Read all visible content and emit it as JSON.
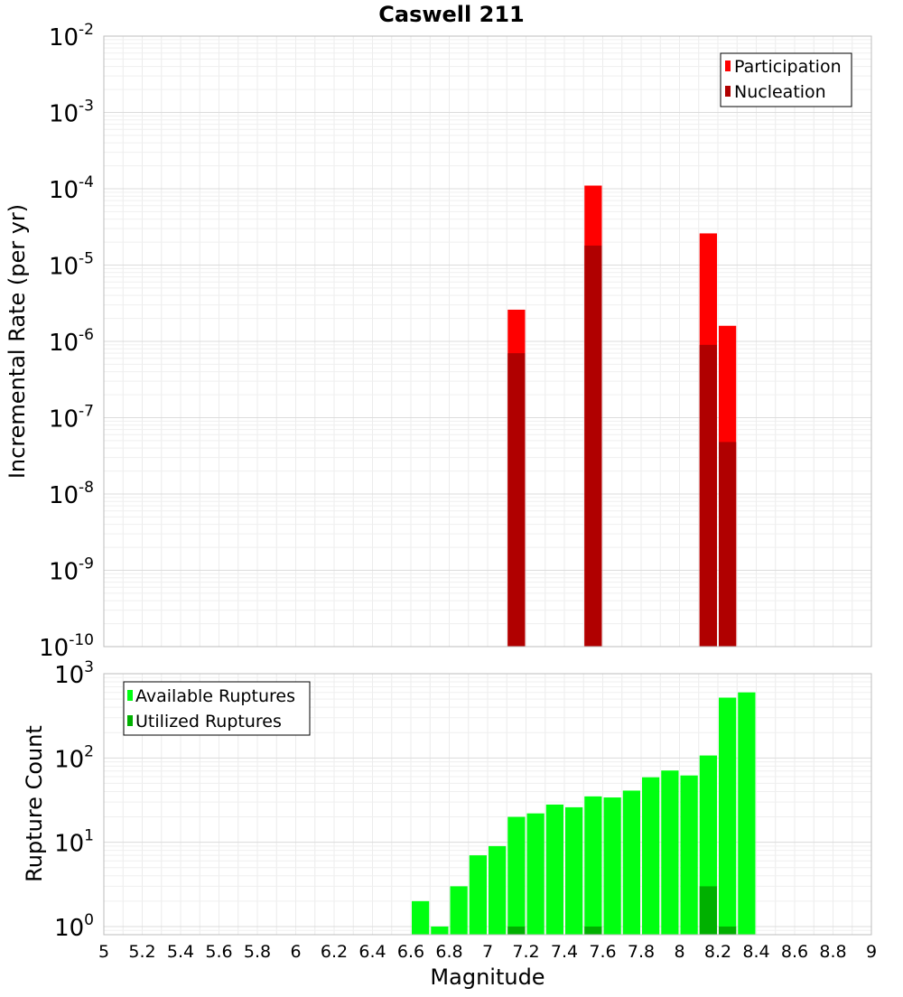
{
  "chart_data": [
    {
      "type": "bar",
      "title": "Caswell 211",
      "ylabel": "Incremental Rate (per yr)",
      "xlabel": "",
      "y_scale": "log",
      "ylim": [
        1e-10,
        0.01
      ],
      "xlim": [
        5,
        9
      ],
      "y_ticks": [
        "10^-10",
        "10^-9",
        "10^-8",
        "10^-7",
        "10^-6",
        "10^-5",
        "10^-4",
        "10^-3",
        "10^-2"
      ],
      "legend_position": "top-right",
      "grid": true,
      "series": [
        {
          "name": "Participation",
          "color": "#ff0000",
          "points": [
            {
              "x": 7.15,
              "y": 2.6e-06
            },
            {
              "x": 7.55,
              "y": 0.00011
            },
            {
              "x": 8.15,
              "y": 2.6e-05
            },
            {
              "x": 8.25,
              "y": 1.6e-06
            }
          ]
        },
        {
          "name": "Nucleation",
          "color": "#b00000",
          "points": [
            {
              "x": 7.15,
              "y": 7e-07
            },
            {
              "x": 7.55,
              "y": 1.8e-05
            },
            {
              "x": 8.15,
              "y": 9e-07
            },
            {
              "x": 8.25,
              "y": 4.8e-08
            }
          ]
        }
      ]
    },
    {
      "type": "bar",
      "title": "",
      "ylabel": "Rupture Count",
      "xlabel": "Magnitude",
      "y_scale": "log",
      "ylim": [
        0.8,
        1000
      ],
      "xlim": [
        5,
        9
      ],
      "y_ticks": [
        "10^0",
        "10^1",
        "10^2",
        "10^3"
      ],
      "x_ticks": [
        "5",
        "5.2",
        "5.4",
        "5.6",
        "5.8",
        "6",
        "6.2",
        "6.4",
        "6.6",
        "6.8",
        "7",
        "7.2",
        "7.4",
        "7.6",
        "7.8",
        "8",
        "8.2",
        "8.4",
        "8.6",
        "8.8",
        "9"
      ],
      "legend_position": "top-left",
      "grid": true,
      "series": [
        {
          "name": "Available Ruptures",
          "color": "#00ff10",
          "points": [
            {
              "x": 6.65,
              "y": 2
            },
            {
              "x": 6.75,
              "y": 1
            },
            {
              "x": 6.85,
              "y": 3
            },
            {
              "x": 6.95,
              "y": 7
            },
            {
              "x": 7.05,
              "y": 9
            },
            {
              "x": 7.15,
              "y": 20
            },
            {
              "x": 7.25,
              "y": 22
            },
            {
              "x": 7.35,
              "y": 28
            },
            {
              "x": 7.45,
              "y": 26
            },
            {
              "x": 7.55,
              "y": 35
            },
            {
              "x": 7.65,
              "y": 34
            },
            {
              "x": 7.75,
              "y": 41
            },
            {
              "x": 7.85,
              "y": 59
            },
            {
              "x": 7.95,
              "y": 71
            },
            {
              "x": 8.05,
              "y": 62
            },
            {
              "x": 8.15,
              "y": 107
            },
            {
              "x": 8.25,
              "y": 520
            },
            {
              "x": 8.35,
              "y": 600
            }
          ]
        },
        {
          "name": "Utilized Ruptures",
          "color": "#00b000",
          "points": [
            {
              "x": 7.15,
              "y": 1
            },
            {
              "x": 7.55,
              "y": 1
            },
            {
              "x": 8.15,
              "y": 3
            },
            {
              "x": 8.25,
              "y": 1
            }
          ]
        }
      ]
    }
  ]
}
